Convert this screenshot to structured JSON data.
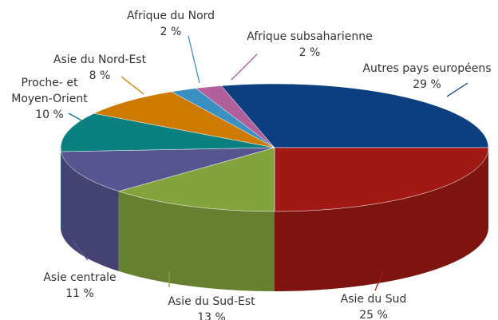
{
  "chart_data": {
    "type": "pie",
    "categories": [
      "Autres pays européens",
      "Asie du Sud",
      "Asie du Sud-Est",
      "Asie centrale",
      "Proche- et Moyen-Orient",
      "Asie du Nord-Est",
      "Afrique du Nord",
      "Afrique subsaharienne"
    ],
    "values": [
      29,
      25,
      13,
      11,
      10,
      8,
      2,
      2
    ],
    "value_labels": [
      "29 %",
      "25 %",
      "13 %",
      "11 %",
      "10 %",
      "8 %",
      "2 %",
      "2 %"
    ],
    "colors": [
      "#0b3f80",
      "#a11915",
      "#83a43d",
      "#56558f",
      "#0b8080",
      "#cc7a00",
      "#3b90c2",
      "#b0609b"
    ]
  }
}
